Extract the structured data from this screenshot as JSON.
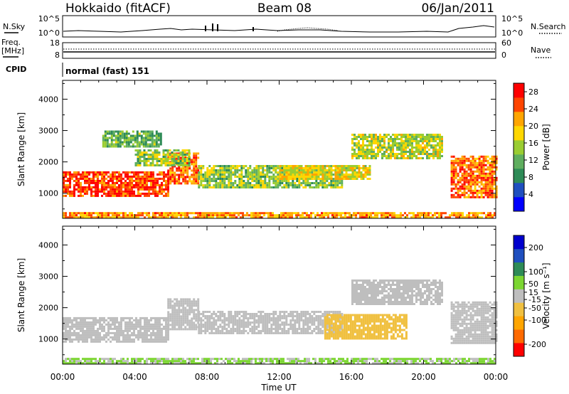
{
  "header": {
    "title": "Hokkaido (fitACF)",
    "beam": "Beam 08",
    "date": "06/Jan/2011"
  },
  "status_panels": {
    "nsky": {
      "label": "N.Sky",
      "ticks": [
        "10^5",
        "10^0"
      ]
    },
    "nsearch": {
      "label": "N.Search",
      "ticks": [
        "10^5",
        "10^0"
      ]
    },
    "freq": {
      "label_line1": "Freq.",
      "label_line2": "[MHz]",
      "ticks": [
        "18",
        "8"
      ]
    },
    "nave": {
      "label": "Nave",
      "ticks": [
        "60",
        "0"
      ]
    },
    "cpid": {
      "label": "CPID",
      "text": "normal (fast) 151"
    }
  },
  "chart_data": [
    {
      "type": "heatmap",
      "name": "power-panel",
      "ylabel": "Slant Range [km]",
      "xlabel": "",
      "xlim_hours": [
        0,
        24
      ],
      "ylim": [
        200,
        4600
      ],
      "y_ticks": [
        "4000",
        "3000",
        "2000",
        "1000"
      ],
      "y_tick_values": [
        4000,
        3000,
        2000,
        1000
      ],
      "colorbar": {
        "label": "Power [dB]",
        "ticks": [
          "28",
          "24",
          "20",
          "16",
          "12",
          "8",
          "4"
        ],
        "tick_values": [
          28,
          24,
          20,
          16,
          12,
          8,
          4
        ],
        "range": [
          0,
          30
        ],
        "colors": [
          "#0000ff",
          "#1f4fbf",
          "#2e8b57",
          "#5fae5f",
          "#9acd32",
          "#ffd700",
          "#ffa500",
          "#ff4500",
          "#ff0000"
        ]
      },
      "echo_regions": [
        {
          "t": [
            0.0,
            5.8
          ],
          "range": [
            900,
            1700
          ],
          "power": 26
        },
        {
          "t": [
            5.8,
            7.5
          ],
          "range": [
            1300,
            2300
          ],
          "power": 24
        },
        {
          "t": [
            4.0,
            7.0
          ],
          "range": [
            1900,
            2400
          ],
          "power": 14
        },
        {
          "t": [
            2.2,
            5.5
          ],
          "range": [
            2500,
            3000
          ],
          "power": 12
        },
        {
          "t": [
            7.5,
            15.5
          ],
          "range": [
            1200,
            1900
          ],
          "power": 14
        },
        {
          "t": [
            12.0,
            17.0
          ],
          "range": [
            1450,
            1900
          ],
          "power": 18
        },
        {
          "t": [
            16.0,
            21.0
          ],
          "range": [
            2100,
            2900
          ],
          "power": 16
        },
        {
          "t": [
            21.5,
            24.0
          ],
          "range": [
            900,
            2200
          ],
          "power": 24
        },
        {
          "t": [
            0.0,
            24.0
          ],
          "range": [
            200,
            400
          ],
          "power": 22
        }
      ]
    },
    {
      "type": "heatmap",
      "name": "velocity-panel",
      "ylabel": "Slant Range [km]",
      "xlabel": "Time UT",
      "x_ticks": [
        "00:00",
        "04:00",
        "08:00",
        "12:00",
        "16:00",
        "20:00",
        "00:00"
      ],
      "x_tick_hours": [
        0,
        4,
        8,
        12,
        16,
        20,
        24
      ],
      "xlim_hours": [
        0,
        24
      ],
      "ylim": [
        200,
        4600
      ],
      "y_ticks": [
        "4000",
        "3000",
        "2000",
        "1000"
      ],
      "y_tick_values": [
        4000,
        3000,
        2000,
        1000
      ],
      "colorbar": {
        "label": "Velocity [m s⁻¹]",
        "ticks": [
          "200",
          "100",
          "50",
          "15",
          "-15",
          "-50",
          "-100",
          "-200"
        ],
        "tick_values": [
          200,
          100,
          50,
          15,
          -15,
          -50,
          -100,
          -200
        ],
        "range": [
          -250,
          250
        ],
        "colors": [
          "#ff0000",
          "#ff6a00",
          "#ffa500",
          "#f0c040",
          "#bebebe",
          "#7cd632",
          "#2e8b57",
          "#1f4fbf",
          "#0000cd"
        ]
      },
      "echo_regions": [
        {
          "t": [
            0.0,
            5.8
          ],
          "range": [
            900,
            1700
          ],
          "velocity": 0
        },
        {
          "t": [
            5.8,
            7.5
          ],
          "range": [
            1300,
            2300
          ],
          "velocity": 0
        },
        {
          "t": [
            7.5,
            15.5
          ],
          "range": [
            1200,
            1900
          ],
          "velocity": 0
        },
        {
          "t": [
            14.5,
            19.0
          ],
          "range": [
            1000,
            1800
          ],
          "velocity": -60
        },
        {
          "t": [
            16.0,
            21.0
          ],
          "range": [
            2100,
            2900
          ],
          "velocity": 0
        },
        {
          "t": [
            21.5,
            24.0
          ],
          "range": [
            900,
            2200
          ],
          "velocity": 0
        },
        {
          "t": [
            0.0,
            24.0
          ],
          "range": [
            200,
            400
          ],
          "velocity": 30
        }
      ]
    }
  ]
}
